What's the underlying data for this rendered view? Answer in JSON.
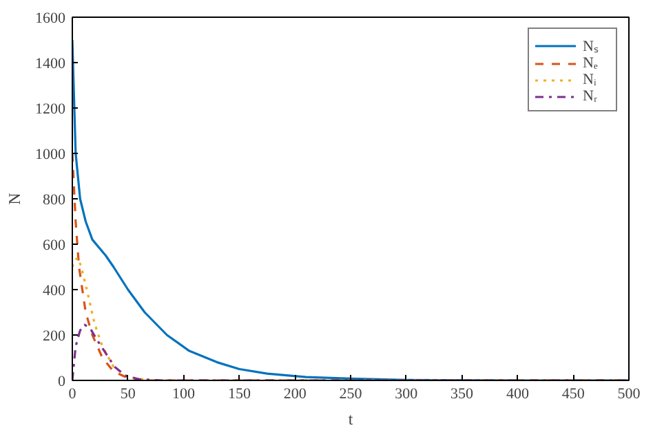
{
  "chart_data": {
    "type": "line",
    "xlabel": "t",
    "ylabel": "N",
    "xlim": [
      0,
      500
    ],
    "xticks": [
      0,
      50,
      100,
      150,
      200,
      250,
      300,
      350,
      400,
      450,
      500
    ],
    "ylim": [
      0,
      1600
    ],
    "yticks": [
      0,
      200,
      400,
      600,
      800,
      1000,
      1200,
      1400,
      1600
    ],
    "grid": false,
    "legend": "top right",
    "series": [
      {
        "name": "Nₛ",
        "color": "#0072bd",
        "line_style": "solid",
        "x": [
          0,
          3,
          7,
          12,
          18,
          30,
          37,
          50,
          65,
          85,
          105,
          130,
          150,
          175,
          210,
          250,
          300,
          400,
          500
        ],
        "values": [
          1500,
          1000,
          800,
          700,
          620,
          550,
          500,
          400,
          300,
          200,
          130,
          80,
          50,
          30,
          15,
          8,
          2,
          0,
          0
        ]
      },
      {
        "name": "Nₑ",
        "color": "#d95319",
        "line_style": "dashed",
        "x": [
          0,
          1,
          3,
          6,
          12,
          18,
          27,
          37,
          50,
          70,
          500
        ],
        "values": [
          1000,
          900,
          700,
          500,
          300,
          200,
          100,
          40,
          10,
          0,
          0
        ]
      },
      {
        "name": "Nᵢ",
        "color": "#edb120",
        "line_style": "dotted",
        "x": [
          0,
          2,
          5,
          8,
          13,
          20,
          27,
          37,
          50,
          70,
          500
        ],
        "values": [
          500,
          530,
          540,
          500,
          400,
          250,
          150,
          60,
          15,
          0,
          0
        ]
      },
      {
        "name": "Nᵣ",
        "color": "#7e2f8e",
        "line_style": "dashdot",
        "x": [
          0,
          3,
          7,
          11,
          16,
          22,
          30,
          38,
          48,
          60,
          80,
          500
        ],
        "values": [
          0,
          150,
          220,
          245,
          230,
          180,
          120,
          60,
          20,
          5,
          0,
          0
        ]
      }
    ]
  }
}
